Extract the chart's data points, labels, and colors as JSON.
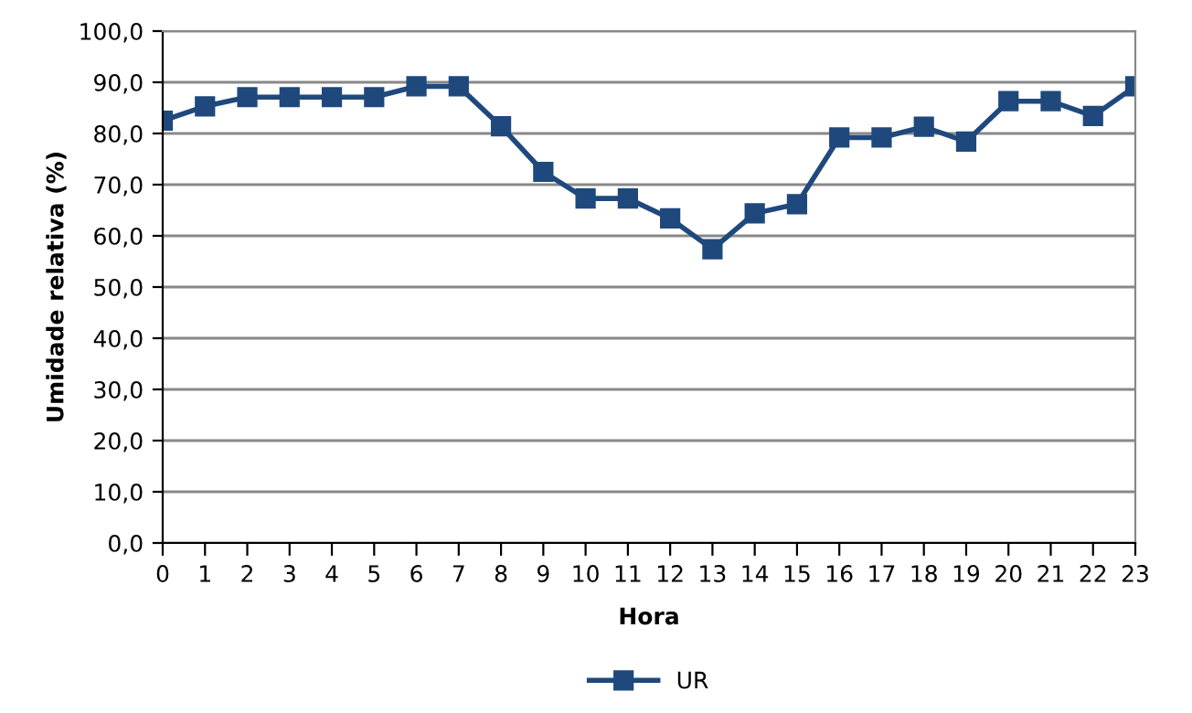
{
  "chart_data": {
    "type": "line",
    "xlabel": "Hora",
    "ylabel": "Umidade relativa (%)",
    "categories": [
      "0",
      "1",
      "2",
      "3",
      "4",
      "5",
      "6",
      "7",
      "8",
      "9",
      "10",
      "11",
      "12",
      "13",
      "14",
      "15",
      "16",
      "17",
      "18",
      "19",
      "20",
      "21",
      "22",
      "23"
    ],
    "series": [
      {
        "name": "UR",
        "color": "#1f497d",
        "values": [
          82.5,
          85.3,
          87.1,
          87.1,
          87.1,
          87.1,
          89.2,
          89.2,
          81.4,
          72.5,
          67.3,
          67.3,
          63.4,
          57.4,
          64.4,
          66.2,
          79.2,
          79.2,
          81.3,
          78.4,
          86.3,
          86.3,
          83.4,
          89.2
        ]
      }
    ],
    "ylim": [
      0,
      100
    ],
    "yticks": [
      {
        "value": 0,
        "label": "0,0"
      },
      {
        "value": 10,
        "label": "10,0"
      },
      {
        "value": 20,
        "label": "20,0"
      },
      {
        "value": 30,
        "label": "30,0"
      },
      {
        "value": 40,
        "label": "40,0"
      },
      {
        "value": 50,
        "label": "50,0"
      },
      {
        "value": 60,
        "label": "60,0"
      },
      {
        "value": 70,
        "label": "70,0"
      },
      {
        "value": 80,
        "label": "80,0"
      },
      {
        "value": 90,
        "label": "90,0"
      },
      {
        "value": 100,
        "label": "100,0"
      }
    ],
    "grid": "y",
    "legend": "bottom",
    "marker": "square",
    "line_style": "solid"
  }
}
